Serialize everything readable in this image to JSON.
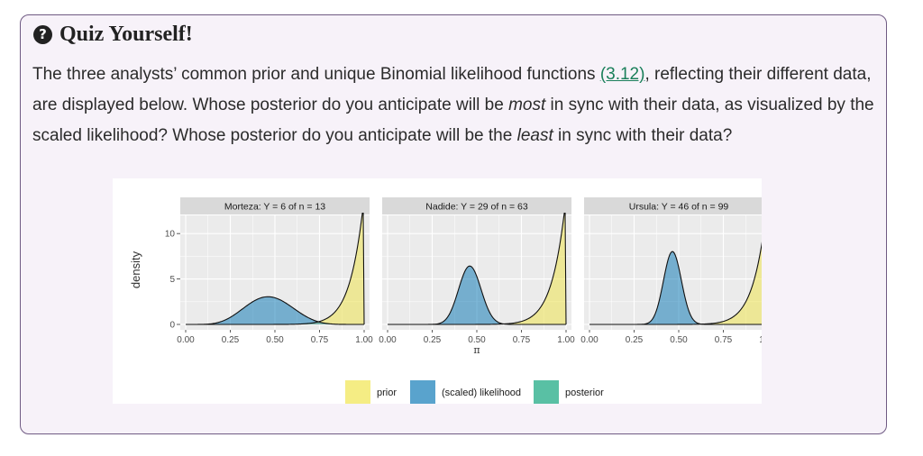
{
  "callout": {
    "title": "Quiz Yourself!",
    "icon": "question-circle-icon",
    "paragraph": {
      "t1": "The three analysts’ common prior and unique Binomial likelihood functions ",
      "link": "(3.12)",
      "t2": ", reflecting their different data, are displayed below. Whose posterior do you anticipate will be ",
      "em1": "most",
      "t3": " in sync with their data, as visualized by the scaled likelihood? Whose posterior do you anticipate will be the ",
      "em2": "least",
      "t4": " in sync with their data?"
    }
  },
  "chart_data": {
    "type": "area",
    "ylabel": "density",
    "xlabel": "π",
    "xlim": [
      0,
      1
    ],
    "ylim": [
      0,
      12
    ],
    "x_ticks": [
      "0.00",
      "0.25",
      "0.50",
      "0.75",
      "1.00"
    ],
    "y_ticks": [
      "0",
      "5",
      "10"
    ],
    "grid": true,
    "legend_position": "bottom",
    "legend": [
      {
        "label": "prior",
        "color": "#f0e442"
      },
      {
        "label": "(scaled) likelihood",
        "color": "#0072b2"
      },
      {
        "label": "posterior",
        "color": "#009e73"
      }
    ],
    "prior": {
      "alpha": 14,
      "beta": 1
    },
    "panels": [
      {
        "label": "Morteza: Y = 6 of n = 13",
        "y": 6,
        "n": 13
      },
      {
        "label": "Nadide: Y = 29 of n = 63",
        "y": 29,
        "n": 63
      },
      {
        "label": "Ursula: Y = 46 of n = 99",
        "y": 46,
        "n": 99
      }
    ]
  }
}
